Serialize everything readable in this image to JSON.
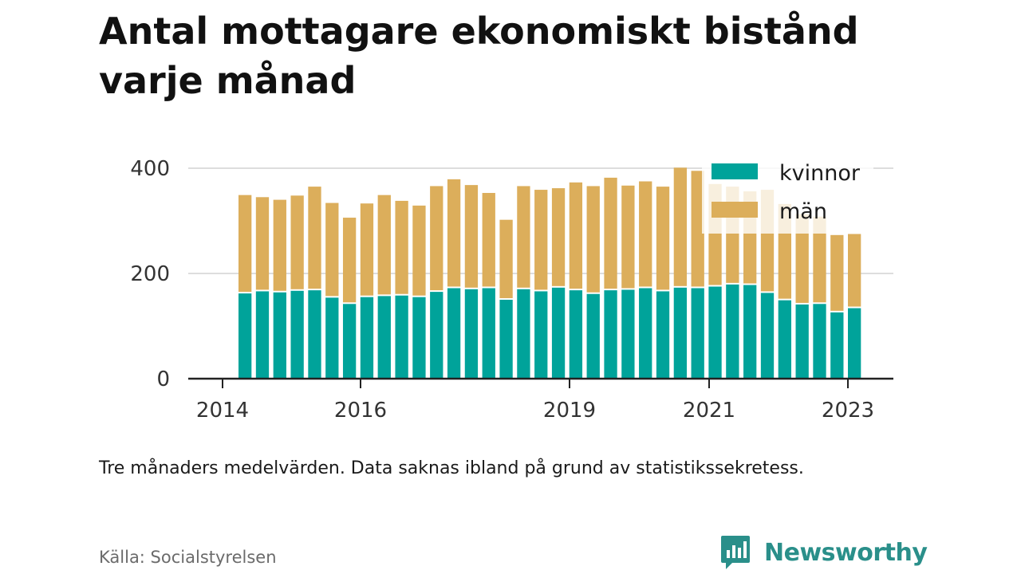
{
  "title": "Antal mottagare ekonomiskt bistånd varje månad",
  "note": "Tre månaders medelvärden. Data saknas ibland på grund av statistikssekretess.",
  "source": "Källa: Socialstyrelsen",
  "brand": "Newsworthy",
  "colors": {
    "kvinnor": "#00a39a",
    "man": "#dcae5b",
    "grid": "#dddddd",
    "axis": "#222222",
    "brand": "#2a8f8a"
  },
  "chart_data": {
    "type": "bar",
    "stacked": true,
    "ylim": [
      0,
      400
    ],
    "yticks": [
      0,
      200,
      400
    ],
    "xticks": [
      "2014",
      "2016",
      "2019",
      "2021",
      "2023"
    ],
    "legend_position": "top-right",
    "grid": true,
    "series": [
      {
        "name": "kvinnor",
        "values": [
          162,
          166,
          164,
          167,
          168,
          154,
          142,
          155,
          157,
          158,
          155,
          165,
          172,
          170,
          172,
          150,
          170,
          166,
          173,
          168,
          161,
          168,
          169,
          172,
          166,
          173,
          172,
          175,
          179,
          178,
          163,
          149,
          141,
          142,
          126,
          134
        ]
      },
      {
        "name": "män",
        "values": [
          187,
          179,
          176,
          181,
          197,
          180,
          164,
          178,
          192,
          180,
          174,
          201,
          207,
          198,
          181,
          152,
          196,
          193,
          189,
          205,
          205,
          214,
          198,
          203,
          199,
          228,
          223,
          195,
          186,
          178,
          196,
          183,
          172,
          166,
          147,
          141
        ]
      }
    ]
  }
}
